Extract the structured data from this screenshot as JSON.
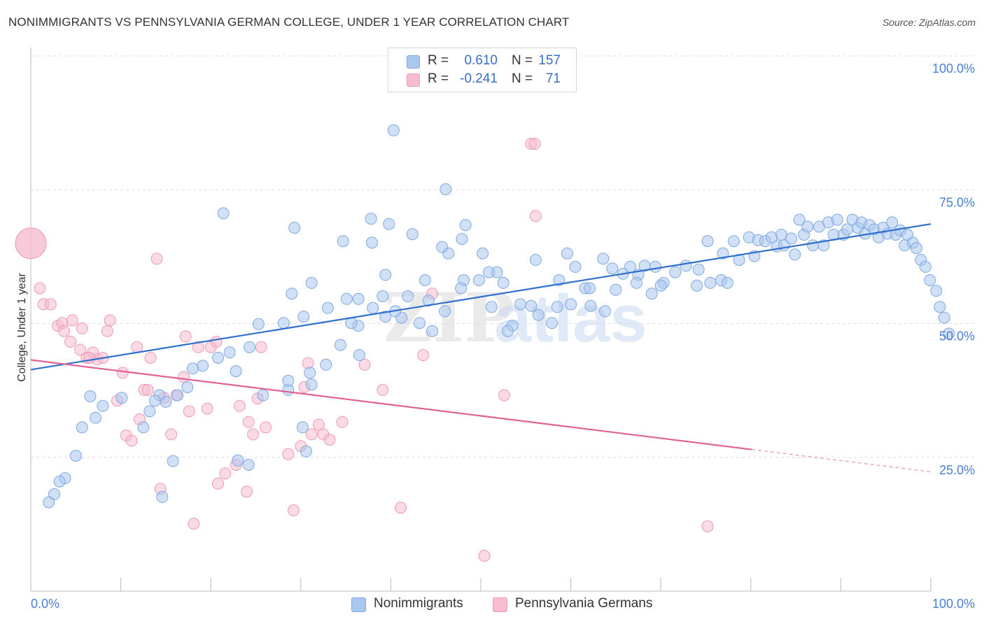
{
  "header": {
    "title": "NONIMMIGRANTS VS PENNSYLVANIA GERMAN COLLEGE, UNDER 1 YEAR CORRELATION CHART",
    "source": "Source: ZipAtlas.com"
  },
  "watermark": {
    "zip": "ZIP",
    "atlas": "atlas"
  },
  "legend": {
    "rows": [
      {
        "r_label": "R =",
        "r_value": "0.610",
        "n_label": "N =",
        "n_value": "157",
        "color": "#a9c7ef"
      },
      {
        "r_label": "R =",
        "r_value": "-0.241",
        "n_label": "N =",
        "n_value": "71",
        "color": "#f6bcd0"
      }
    ]
  },
  "bottom_legend": [
    {
      "label": "Nonimmigrants",
      "color": "#a9c7ef"
    },
    {
      "label": "Pennsylvania Germans",
      "color": "#f6bcd0"
    }
  ],
  "colors": {
    "blue_fill": "#a9c7ef",
    "blue_stroke": "#7ea9e3",
    "blue_line": "#2f6fce",
    "pink_fill": "#f6bcd0",
    "pink_stroke": "#ee9ab6",
    "pink_line": "#e06394",
    "tick_text": "#4a7fd6"
  },
  "chart_data": {
    "type": "scatter",
    "title": "NONIMMIGRANTS VS PENNSYLVANIA GERMAN COLLEGE, UNDER 1 YEAR CORRELATION CHART",
    "xlabel": "",
    "ylabel": "College, Under 1 year",
    "xlim": [
      0,
      100
    ],
    "ylim": [
      0,
      100
    ],
    "x_tick_labels": [
      "0.0%",
      "100.0%"
    ],
    "y_tick_labels": [
      "100.0%",
      "75.0%",
      "50.0%",
      "25.0%"
    ],
    "y_tick_values": [
      100,
      75,
      50,
      25
    ],
    "grid": "dashed horizontal",
    "legend_position": "top-center",
    "series": [
      {
        "name": "Nonimmigrants",
        "r": 0.61,
        "n": 157,
        "trend": {
          "x": [
            0,
            100
          ],
          "y": [
            40.6,
            68.6
          ]
        },
        "points": [
          [
            40.3,
            86.1
          ],
          [
            46.1,
            75.1
          ],
          [
            21.4,
            70.6
          ],
          [
            37.8,
            69.6
          ],
          [
            39.8,
            68.6
          ],
          [
            29.3,
            67.9
          ],
          [
            42.4,
            66.7
          ],
          [
            34.7,
            65.4
          ],
          [
            37.9,
            65.1
          ],
          [
            48.3,
            68.4
          ],
          [
            47.9,
            65.8
          ],
          [
            46.4,
            63.1
          ],
          [
            45.7,
            64.3
          ],
          [
            50.2,
            63.1
          ],
          [
            39.4,
            59.1
          ],
          [
            31.2,
            57.6
          ],
          [
            29.0,
            55.6
          ],
          [
            35.1,
            54.6
          ],
          [
            36.4,
            54.6
          ],
          [
            39.1,
            55.1
          ],
          [
            44.2,
            54.3
          ],
          [
            43.8,
            58.1
          ],
          [
            48.1,
            58.1
          ],
          [
            56.1,
            61.9
          ],
          [
            59.6,
            63.1
          ],
          [
            60.5,
            60.6
          ],
          [
            58.7,
            58.1
          ],
          [
            61.6,
            56.6
          ],
          [
            62.1,
            56.6
          ],
          [
            63.6,
            62.1
          ],
          [
            64.6,
            60.3
          ],
          [
            65.8,
            59.3
          ],
          [
            66.6,
            60.6
          ],
          [
            67.5,
            59.1
          ],
          [
            68.2,
            60.8
          ],
          [
            69.4,
            60.6
          ],
          [
            70.3,
            57.6
          ],
          [
            71.6,
            59.6
          ],
          [
            72.8,
            60.8
          ],
          [
            74.0,
            57.1
          ],
          [
            75.5,
            57.6
          ],
          [
            74.2,
            60.1
          ],
          [
            76.7,
            58.1
          ],
          [
            77.4,
            57.6
          ],
          [
            75.2,
            65.4
          ],
          [
            76.9,
            63.1
          ],
          [
            78.1,
            65.4
          ],
          [
            78.7,
            61.9
          ],
          [
            79.8,
            66.1
          ],
          [
            80.4,
            62.6
          ],
          [
            80.8,
            65.6
          ],
          [
            81.6,
            65.4
          ],
          [
            82.3,
            66.1
          ],
          [
            82.9,
            64.4
          ],
          [
            83.4,
            66.6
          ],
          [
            83.7,
            64.6
          ],
          [
            84.5,
            65.9
          ],
          [
            84.9,
            62.9
          ],
          [
            85.4,
            69.4
          ],
          [
            85.9,
            66.6
          ],
          [
            86.3,
            68.1
          ],
          [
            86.9,
            64.6
          ],
          [
            87.6,
            68.1
          ],
          [
            88.1,
            64.6
          ],
          [
            88.6,
            68.9
          ],
          [
            89.2,
            66.6
          ],
          [
            89.6,
            69.4
          ],
          [
            90.3,
            66.6
          ],
          [
            90.7,
            67.6
          ],
          [
            91.3,
            69.4
          ],
          [
            91.9,
            67.9
          ],
          [
            92.3,
            68.9
          ],
          [
            92.7,
            66.8
          ],
          [
            93.2,
            68.4
          ],
          [
            93.7,
            67.6
          ],
          [
            94.2,
            66.1
          ],
          [
            94.7,
            67.9
          ],
          [
            95.2,
            66.8
          ],
          [
            95.7,
            68.9
          ],
          [
            96.1,
            66.6
          ],
          [
            96.6,
            67.4
          ],
          [
            97.1,
            64.6
          ],
          [
            97.4,
            66.6
          ],
          [
            98.0,
            65.1
          ],
          [
            98.4,
            64.1
          ],
          [
            98.9,
            61.9
          ],
          [
            99.4,
            60.6
          ],
          [
            99.9,
            58.1
          ],
          [
            100.6,
            56.1
          ],
          [
            101.0,
            53.1
          ],
          [
            101.5,
            51.1
          ],
          [
            102.0,
            48.1
          ],
          [
            69.0,
            55.6
          ],
          [
            70.0,
            57.1
          ],
          [
            67.3,
            57.6
          ],
          [
            65.0,
            56.3
          ],
          [
            63.8,
            52.3
          ],
          [
            62.2,
            53.3
          ],
          [
            60.0,
            53.6
          ],
          [
            58.5,
            53.1
          ],
          [
            56.4,
            51.6
          ],
          [
            57.9,
            50.1
          ],
          [
            54.4,
            53.6
          ],
          [
            55.6,
            53.3
          ],
          [
            53.5,
            49.6
          ],
          [
            53.0,
            48.6
          ],
          [
            51.2,
            53.1
          ],
          [
            52.5,
            57.6
          ],
          [
            51.8,
            59.6
          ],
          [
            50.9,
            59.6
          ],
          [
            49.8,
            58.1
          ],
          [
            47.8,
            56.6
          ],
          [
            46.0,
            52.3
          ],
          [
            44.6,
            48.6
          ],
          [
            43.2,
            50.1
          ],
          [
            41.2,
            51.1
          ],
          [
            41.9,
            55.1
          ],
          [
            40.5,
            52.3
          ],
          [
            39.4,
            51.3
          ],
          [
            38.0,
            52.9
          ],
          [
            36.4,
            49.6
          ],
          [
            35.6,
            50.1
          ],
          [
            33.0,
            52.9
          ],
          [
            30.3,
            51.3
          ],
          [
            28.1,
            50.1
          ],
          [
            25.3,
            49.9
          ],
          [
            24.3,
            45.6
          ],
          [
            22.1,
            44.6
          ],
          [
            20.8,
            43.6
          ],
          [
            19.1,
            42.1
          ],
          [
            18.0,
            41.6
          ],
          [
            17.4,
            38.1
          ],
          [
            16.3,
            36.6
          ],
          [
            15.0,
            35.4
          ],
          [
            14.3,
            36.6
          ],
          [
            13.8,
            35.6
          ],
          [
            13.2,
            33.6
          ],
          [
            12.5,
            30.6
          ],
          [
            10.1,
            36.1
          ],
          [
            8.0,
            34.6
          ],
          [
            7.2,
            32.4
          ],
          [
            6.6,
            36.4
          ],
          [
            5.7,
            30.6
          ],
          [
            5.0,
            25.3
          ],
          [
            3.8,
            21.1
          ],
          [
            3.2,
            20.5
          ],
          [
            2.6,
            18.1
          ],
          [
            2.0,
            16.6
          ],
          [
            32.8,
            42.3
          ],
          [
            34.4,
            46.0
          ],
          [
            36.5,
            44.1
          ],
          [
            22.8,
            41.1
          ],
          [
            28.6,
            37.6
          ],
          [
            25.8,
            36.6
          ],
          [
            28.6,
            39.3
          ],
          [
            31.0,
            40.8
          ],
          [
            31.2,
            38.6
          ],
          [
            23.0,
            24.4
          ],
          [
            24.2,
            23.6
          ],
          [
            15.8,
            24.3
          ],
          [
            14.6,
            17.6
          ],
          [
            30.2,
            30.6
          ],
          [
            30.6,
            26.1
          ]
        ]
      },
      {
        "name": "Pennsylvania Germans",
        "r": -0.241,
        "n": 71,
        "trend": {
          "x": [
            0,
            100
          ],
          "y": [
            43.2,
            22.3
          ],
          "solid_until_x": 80.1
        },
        "points": [
          [
            0.0,
            65.0
          ],
          [
            1.0,
            56.6
          ],
          [
            1.4,
            53.6
          ],
          [
            2.2,
            53.6
          ],
          [
            3.0,
            49.6
          ],
          [
            3.5,
            50.1
          ],
          [
            3.7,
            48.6
          ],
          [
            4.4,
            46.6
          ],
          [
            4.6,
            50.6
          ],
          [
            5.5,
            45.1
          ],
          [
            5.7,
            49.1
          ],
          [
            6.2,
            43.6
          ],
          [
            6.9,
            44.6
          ],
          [
            7.4,
            43.3
          ],
          [
            8.0,
            43.6
          ],
          [
            8.5,
            48.6
          ],
          [
            8.8,
            50.6
          ],
          [
            9.6,
            35.6
          ],
          [
            10.2,
            40.8
          ],
          [
            10.6,
            29.1
          ],
          [
            11.2,
            28.1
          ],
          [
            11.8,
            45.6
          ],
          [
            12.1,
            32.1
          ],
          [
            12.6,
            37.6
          ],
          [
            13.0,
            37.6
          ],
          [
            13.3,
            43.6
          ],
          [
            14.0,
            62.1
          ],
          [
            14.4,
            19.1
          ],
          [
            14.8,
            36.1
          ],
          [
            15.6,
            29.3
          ],
          [
            16.2,
            36.6
          ],
          [
            17.0,
            40.0
          ],
          [
            17.2,
            47.6
          ],
          [
            17.6,
            33.6
          ],
          [
            18.1,
            12.6
          ],
          [
            18.6,
            45.6
          ],
          [
            19.6,
            34.1
          ],
          [
            20.0,
            45.6
          ],
          [
            20.6,
            46.6
          ],
          [
            20.8,
            20.1
          ],
          [
            21.6,
            22.0
          ],
          [
            22.8,
            23.6
          ],
          [
            23.2,
            34.6
          ],
          [
            24.0,
            18.6
          ],
          [
            24.2,
            31.6
          ],
          [
            24.7,
            29.3
          ],
          [
            25.2,
            36.0
          ],
          [
            25.6,
            45.6
          ],
          [
            26.1,
            30.6
          ],
          [
            28.6,
            25.6
          ],
          [
            29.2,
            15.1
          ],
          [
            30.0,
            27.1
          ],
          [
            30.4,
            38.1
          ],
          [
            30.8,
            42.6
          ],
          [
            31.2,
            29.3
          ],
          [
            32.0,
            31.1
          ],
          [
            32.5,
            29.3
          ],
          [
            33.2,
            28.3
          ],
          [
            34.6,
            31.6
          ],
          [
            37.1,
            42.3
          ],
          [
            39.1,
            37.6
          ],
          [
            41.1,
            15.6
          ],
          [
            43.6,
            44.1
          ],
          [
            44.6,
            55.6
          ],
          [
            50.4,
            6.6
          ],
          [
            52.6,
            36.6
          ],
          [
            55.6,
            83.6
          ],
          [
            56.0,
            83.6
          ],
          [
            56.1,
            70.1
          ],
          [
            75.2,
            12.1
          ],
          [
            6.5,
            43.6
          ]
        ]
      }
    ]
  }
}
